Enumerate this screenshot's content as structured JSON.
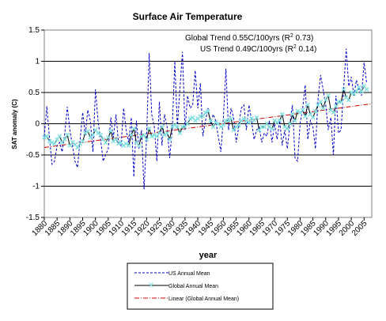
{
  "chart_data": {
    "type": "line",
    "title": "Surface Air Temperature",
    "xlabel": "year",
    "ylabel": "SAT anomaly (C)",
    "xlim": [
      1880,
      2008
    ],
    "ylim": [
      -1.5,
      1.5
    ],
    "y_ticks": [
      "1.5",
      "1",
      "0.5",
      "0",
      "-0.5",
      "-1",
      "-1.5"
    ],
    "x_ticks": [
      "1880",
      "1885",
      "1890",
      "1895",
      "1900",
      "1905",
      "1910",
      "1915",
      "1920",
      "1925",
      "1930",
      "1935",
      "1940",
      "1945",
      "1950",
      "1955",
      "1960",
      "1965",
      "1970",
      "1975",
      "1980",
      "1985",
      "1990",
      "1995",
      "2000",
      "2005"
    ],
    "grid": "horizontal",
    "legend_position": "bottom",
    "annotations": [
      {
        "prefix": "Global Trend 0.55C/100yrs (R",
        "sup": "2",
        "suffix": " 0.73)"
      },
      {
        "prefix": "US Trend 0.49C/100yrs (R",
        "sup": "2",
        "suffix": " 0.14)"
      }
    ],
    "series": [
      {
        "name": "US Annual Mean",
        "style": "dashed",
        "color": "#0000cc",
        "x_start": 1880,
        "values": [
          -0.2,
          0.28,
          -0.22,
          -0.65,
          -0.6,
          -0.35,
          -0.3,
          -0.45,
          -0.15,
          0.27,
          -0.1,
          -0.35,
          -0.6,
          -0.7,
          -0.25,
          0.18,
          -0.18,
          0.22,
          0.05,
          -0.45,
          0.55,
          0.05,
          -0.25,
          -0.6,
          -0.5,
          -0.4,
          0.1,
          -0.22,
          0.15,
          -0.3,
          -0.35,
          0.25,
          -0.1,
          -0.3,
          0.1,
          -0.85,
          0.05,
          -0.4,
          -0.1,
          -1.05,
          -0.2,
          1.13,
          0.15,
          -0.05,
          -0.6,
          0.35,
          -0.35,
          0.15,
          -0.05,
          -0.55,
          -0.1,
          1.0,
          -0.05,
          0.55,
          1.15,
          -0.1,
          0.45,
          0.25,
          0.3,
          0.85,
          0.25,
          0.65,
          -0.2,
          0.05,
          0.25,
          0.0,
          0.15,
          0.05,
          -0.2,
          -0.45,
          0.1,
          0.88,
          -0.1,
          0.25,
          0.1,
          -0.3,
          -0.05,
          0.25,
          0.3,
          -0.1,
          0.3,
          0.05,
          -0.25,
          -0.1,
          -0.05,
          -0.3,
          -0.15,
          -0.2,
          0.05,
          -0.3,
          0.0,
          -0.25,
          0.05,
          -0.35,
          -0.1,
          -0.4,
          0.0,
          0.3,
          -0.55,
          -0.6,
          0.0,
          0.25,
          0.62,
          -0.25,
          0.05,
          -0.05,
          -0.4,
          0.4,
          0.78,
          0.55,
          0.3,
          -0.1,
          0.1,
          -0.5,
          0.45,
          -0.15,
          -0.1,
          0.55,
          1.2,
          0.6,
          0.75,
          0.45,
          0.7,
          0.55,
          0.45,
          0.98,
          0.65
        ]
      },
      {
        "name": "Global Annual Mean",
        "style": "solid-marker",
        "color": "#000000",
        "marker_color": "#7fe0e0",
        "x_start": 1880,
        "values": [
          -0.22,
          -0.2,
          -0.28,
          -0.3,
          -0.32,
          -0.25,
          -0.2,
          -0.3,
          -0.25,
          -0.18,
          -0.35,
          -0.3,
          -0.33,
          -0.38,
          -0.32,
          -0.28,
          -0.15,
          -0.12,
          -0.22,
          -0.18,
          -0.1,
          -0.15,
          -0.18,
          -0.25,
          -0.3,
          -0.22,
          -0.12,
          -0.28,
          -0.25,
          -0.32,
          -0.3,
          -0.35,
          -0.32,
          -0.35,
          -0.18,
          -0.08,
          -0.3,
          -0.35,
          -0.2,
          -0.18,
          -0.25,
          -0.08,
          -0.2,
          -0.18,
          -0.2,
          -0.15,
          -0.05,
          -0.18,
          -0.15,
          -0.25,
          -0.05,
          -0.02,
          -0.05,
          -0.15,
          -0.05,
          -0.05,
          0.0,
          0.08,
          0.1,
          0.05,
          0.08,
          0.12,
          0.12,
          0.18,
          0.2,
          0.05,
          -0.05,
          0.02,
          0.0,
          -0.05,
          -0.02,
          0.05,
          0.05,
          0.08,
          -0.1,
          -0.05,
          -0.02,
          0.05,
          0.08,
          0.05,
          0.02,
          0.08,
          0.05,
          0.1,
          -0.1,
          -0.05,
          -0.05,
          0.0,
          -0.05,
          -0.08,
          0.05,
          0.02,
          0.05,
          0.15,
          -0.05,
          -0.08,
          0.0,
          0.15,
          0.05,
          0.2,
          0.18,
          0.22,
          0.12,
          0.3,
          0.15,
          0.1,
          0.2,
          0.3,
          0.35,
          0.25,
          0.38,
          0.45,
          0.22,
          0.18,
          0.28,
          0.35,
          0.35,
          0.55,
          0.42,
          0.38,
          0.5,
          0.48,
          0.52,
          0.58,
          0.52,
          0.6,
          0.55
        ]
      },
      {
        "name": "Linear (Global Annual Mean)",
        "style": "dash-dot",
        "color": "#cc0000",
        "x": [
          1880,
          2008
        ],
        "values": [
          -0.38,
          0.32
        ]
      }
    ]
  }
}
